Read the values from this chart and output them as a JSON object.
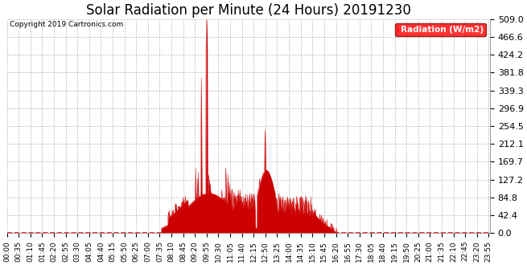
{
  "title": "Solar Radiation per Minute (24 Hours) 20191230",
  "copyright_text": "Copyright 2019 Cartronics.com",
  "legend_label": "Radiation (W/m2)",
  "background_color": "#ffffff",
  "plot_bg_color": "#ffffff",
  "grid_color": "#aaaaaa",
  "fill_color": "#cc0000",
  "line_color": "#cc0000",
  "zero_line_color": "#ff0000",
  "title_fontsize": 12,
  "ylabel_fontsize": 8,
  "xlabel_fontsize": 6.5,
  "ylim": [
    0.0,
    509.0
  ],
  "ytick_values": [
    0.0,
    42.4,
    84.8,
    127.2,
    169.7,
    212.1,
    254.5,
    296.9,
    339.3,
    381.8,
    424.2,
    466.6,
    509.0
  ],
  "total_minutes": 1440,
  "xtick_step": 35,
  "sunrise_min": 460,
  "sunset_min": 985
}
